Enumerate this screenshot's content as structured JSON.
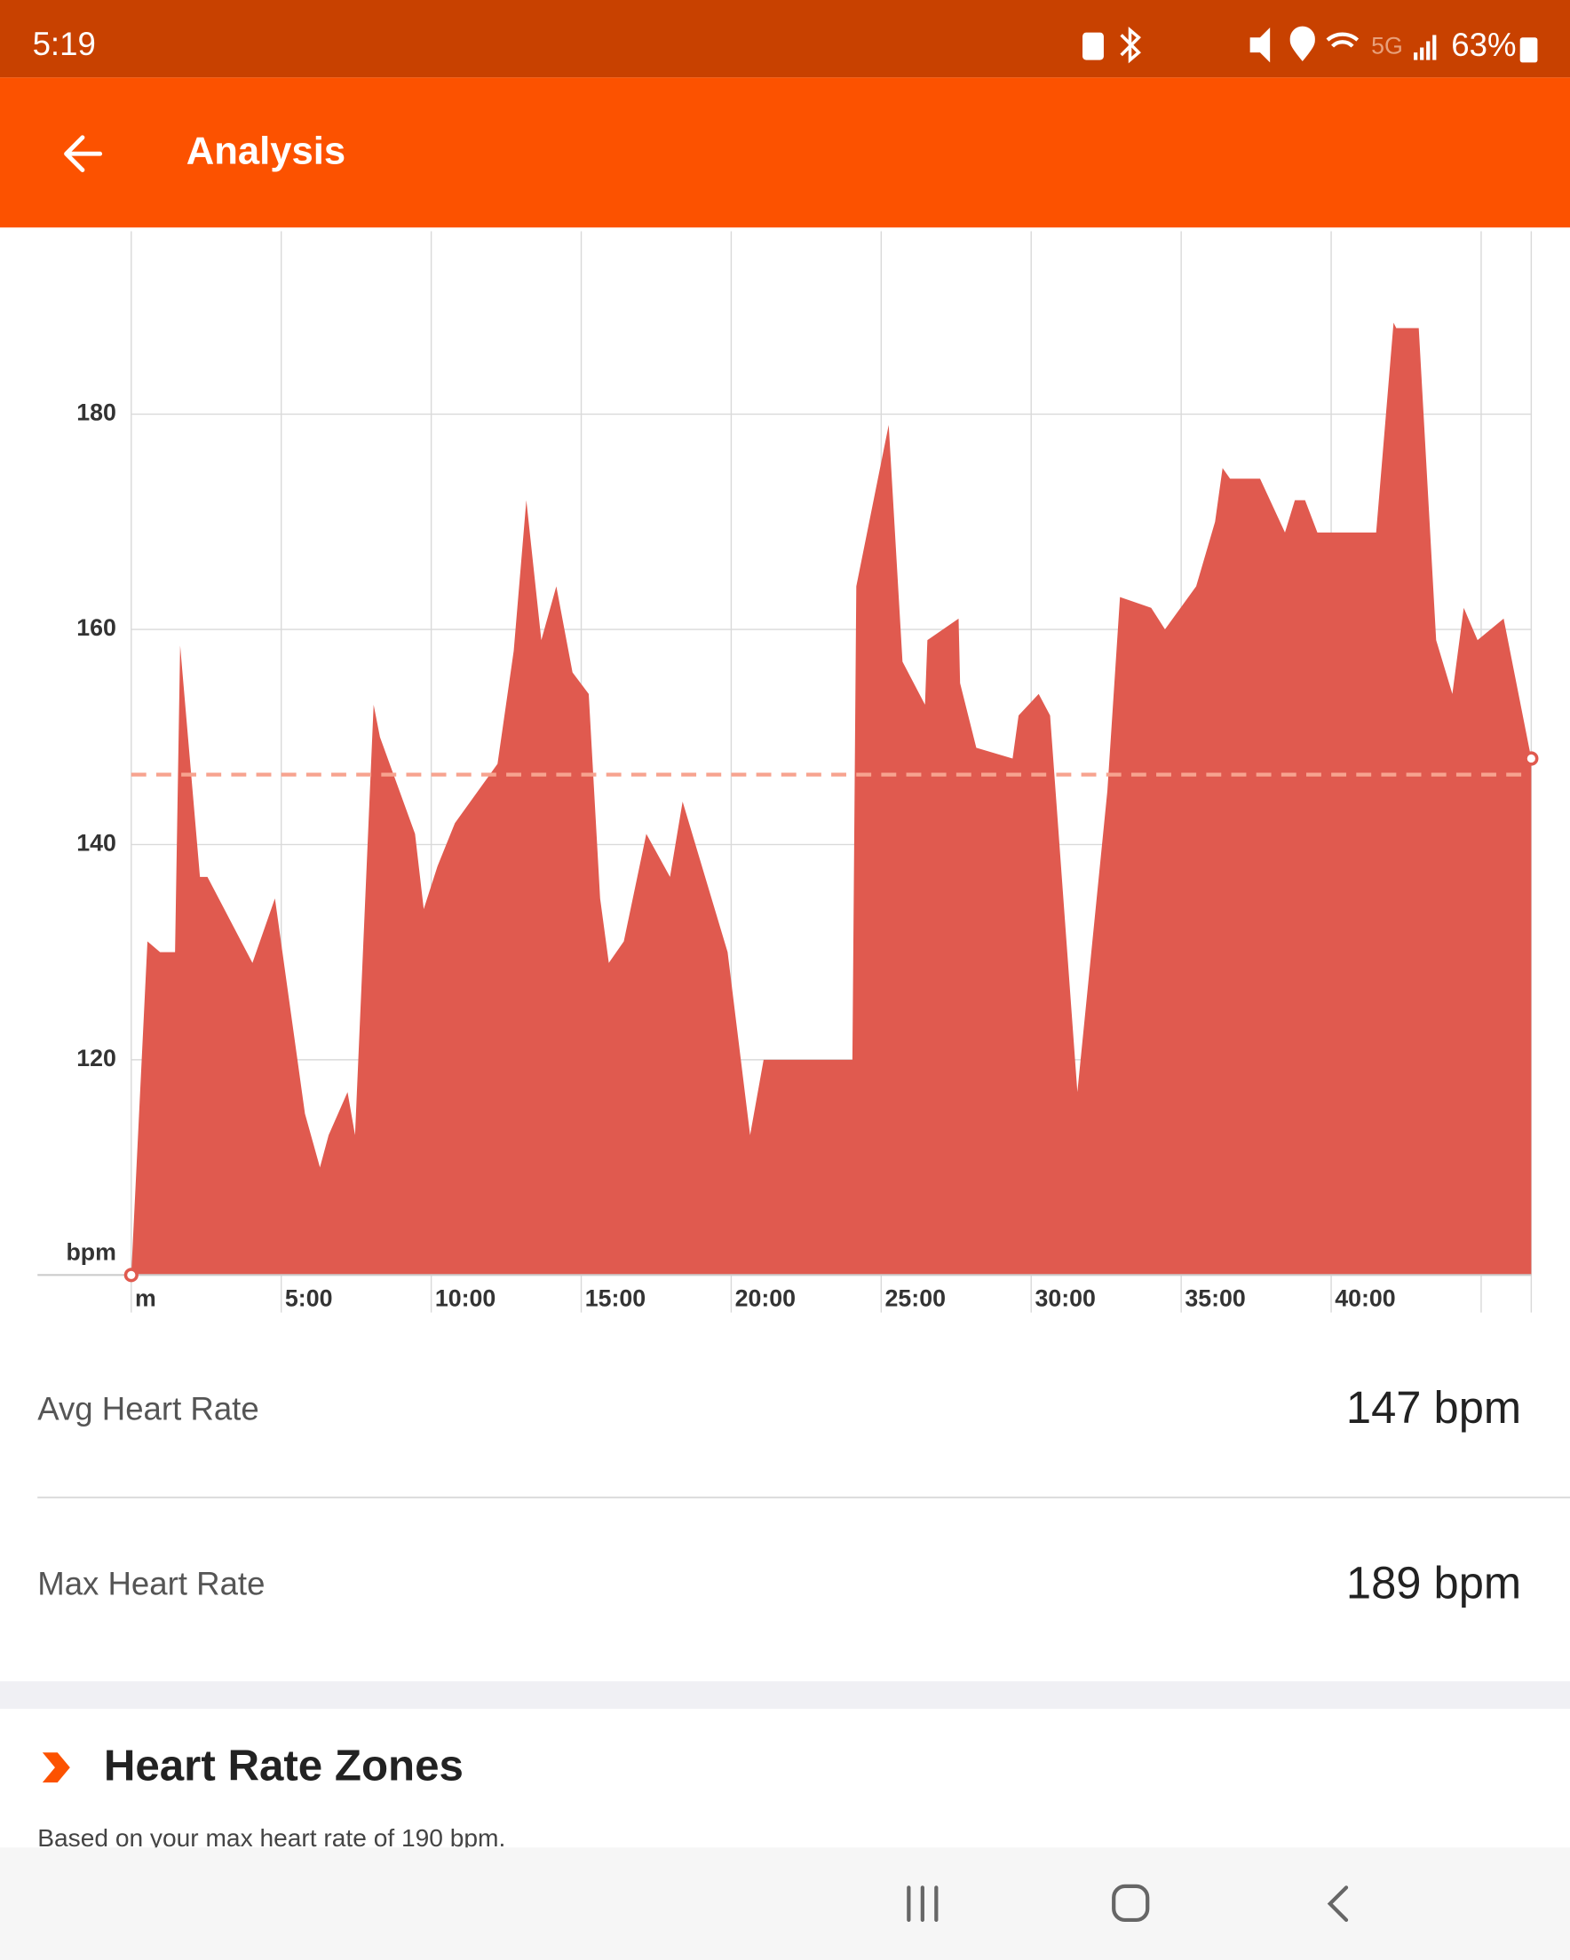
{
  "status_bar": {
    "time": "5:19",
    "network": "5G",
    "battery": "63%"
  },
  "app_bar": {
    "title": "Analysis"
  },
  "chart_data": {
    "type": "area",
    "y_unit": "bpm",
    "x": [
      0,
      0.54,
      0.96,
      1.46,
      1.63,
      2.29,
      2.54,
      4.04,
      4.79,
      5.79,
      6.29,
      6.58,
      7.21,
      7.46,
      8.08,
      8.29,
      9.46,
      9.75,
      10.21,
      10.79,
      12.21,
      12.75,
      13.17,
      13.67,
      14.17,
      14.71,
      15.25,
      15.63,
      15.92,
      16.42,
      17.17,
      17.96,
      18.38,
      19.88,
      20.63,
      21.08,
      24.04,
      24.17,
      25.25,
      25.71,
      26.46,
      26.54,
      27.58,
      27.63,
      28.17,
      29.38,
      29.58,
      30.25,
      30.63,
      31.54,
      32.54,
      32.96,
      34,
      34.46,
      35.5,
      36.13,
      36.38,
      36.63,
      37.63,
      38.46,
      38.79,
      39.13,
      39.54,
      41.5,
      42.08,
      42.17,
      42.92,
      43.5,
      44.04,
      44.42,
      44.88,
      45.75,
      46.67
    ],
    "values": [
      100,
      131,
      130,
      130,
      158.5,
      137,
      137,
      129,
      135,
      115,
      110,
      113,
      117,
      113,
      153,
      150,
      141,
      134,
      138,
      142,
      147.5,
      158,
      172,
      159,
      164,
      156,
      154,
      135,
      129,
      131,
      141,
      137,
      144,
      130,
      113,
      120,
      120,
      164,
      179,
      157,
      153,
      159,
      161,
      155,
      149,
      148,
      152,
      154,
      152,
      117,
      145,
      163,
      162,
      160,
      164,
      170,
      175,
      174,
      174,
      169,
      172,
      172,
      169,
      169,
      188.5,
      188,
      188,
      159,
      154,
      162,
      159,
      161,
      148
    ],
    "color": "#e05a4f",
    "average": 146.5,
    "average_color": "#f7a38f",
    "xlim": [
      0,
      46.67
    ],
    "ylim": [
      100,
      197
    ],
    "xticks": [
      {
        "value": 0,
        "label": "m"
      },
      {
        "value": 5,
        "label": "5:00"
      },
      {
        "value": 10,
        "label": "10:00"
      },
      {
        "value": 15,
        "label": "15:00"
      },
      {
        "value": 20,
        "label": "20:00"
      },
      {
        "value": 25,
        "label": "25:00"
      },
      {
        "value": 30,
        "label": "30:00"
      },
      {
        "value": 35,
        "label": "35:00"
      },
      {
        "value": 40,
        "label": "40:00"
      },
      {
        "value": 45,
        "label": null
      }
    ],
    "yticks": [
      120,
      140,
      160,
      180
    ],
    "grid": true
  },
  "stats": [
    {
      "label": "Avg Heart Rate",
      "value": "147 bpm"
    },
    {
      "label": "Max Heart Rate",
      "value": "189 bpm"
    }
  ],
  "zones": {
    "title": "Heart Rate Zones",
    "subtitle": "Based on your max heart rate of 190 bpm."
  }
}
